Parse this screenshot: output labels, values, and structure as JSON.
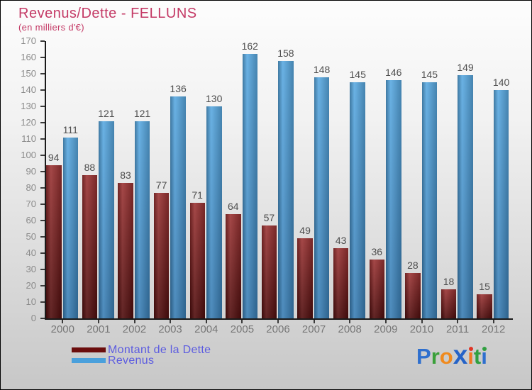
{
  "title": "Revenus/Dette - FELLUNS",
  "subtitle": "(en milliers d'€)",
  "colors": {
    "title": "#c43a66",
    "subtitle": "#c43a66",
    "legend_text": "#5c5ce0",
    "axis": "#1a1a1a",
    "tick_label": "#8a8a8a",
    "year_label": "#777777",
    "value_label": "#4d4d4d"
  },
  "chart_data": {
    "type": "bar",
    "title": "Revenus/Dette - FELLUNS",
    "subtitle": "(en milliers d'€)",
    "categories": [
      "2000",
      "2001",
      "2002",
      "2003",
      "2004",
      "2005",
      "2006",
      "2007",
      "2008",
      "2009",
      "2010",
      "2011",
      "2012"
    ],
    "series": [
      {
        "name": "Montant de la Dette",
        "values": [
          94,
          88,
          83,
          77,
          71,
          64,
          57,
          49,
          43,
          36,
          28,
          18,
          15
        ],
        "color_top": "#9c3434",
        "color_bottom": "#4f0d0d",
        "legend_color": "#6b0d0d"
      },
      {
        "name": "Revenus",
        "values": [
          111,
          121,
          121,
          136,
          130,
          162,
          158,
          148,
          145,
          146,
          145,
          149,
          140
        ],
        "color_top": "#5aaae2",
        "color_bottom": "#3a7eb4",
        "legend_color": "#4aa0dc"
      }
    ],
    "ylim": [
      0,
      170
    ],
    "ytick_step": 10,
    "grid": false,
    "legend_position": "bottom-left"
  },
  "logo": {
    "name": "Proxiti",
    "letters": [
      {
        "char": "P",
        "color": "#2e6fce"
      },
      {
        "char": "r",
        "color": "#3aa03a"
      },
      {
        "char": "o",
        "color": "#f08a1e"
      },
      {
        "char": "x",
        "color": "#2563c8",
        "bold": true
      },
      {
        "char": "ı",
        "color": "#f07820",
        "dot": "#e03525"
      },
      {
        "char": "t",
        "color": "#30a040"
      },
      {
        "char": "ı",
        "color": "#2e6fce",
        "dot": "#30a040"
      }
    ]
  }
}
